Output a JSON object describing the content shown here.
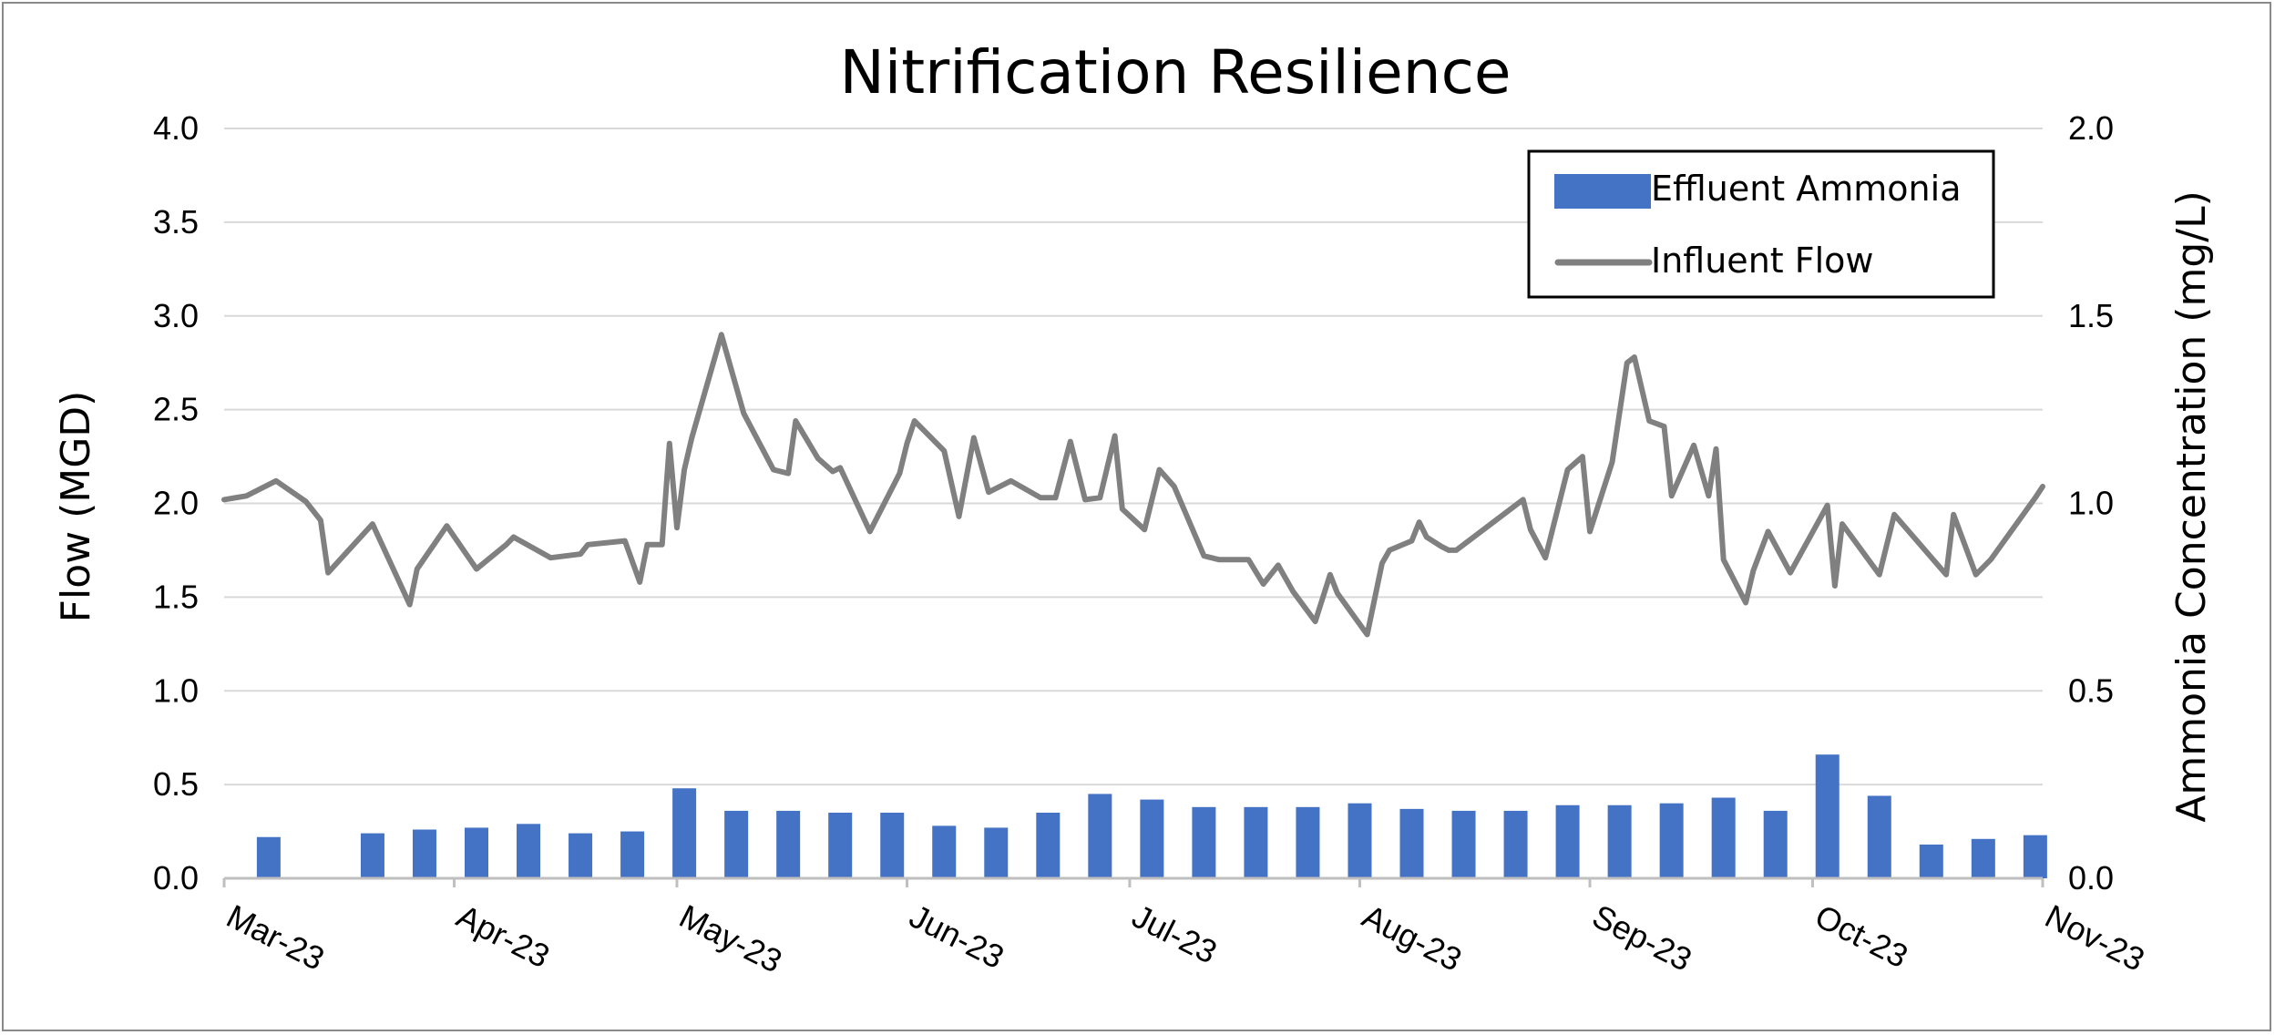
{
  "chart_data": {
    "type": "bar",
    "title": "Nitrification Resilience",
    "ylabel_left": "Flow (MGD)",
    "ylabel_right": "Ammonia Concentration (mg/L)",
    "ylim_left": [
      0,
      4
    ],
    "ylim_right": [
      0,
      2
    ],
    "yticks_left": [
      "0.0",
      "0.5",
      "1.0",
      "1.5",
      "2.0",
      "2.5",
      "3.0",
      "3.5",
      "4.0"
    ],
    "yticks_right": [
      "0.0",
      "0.5",
      "1.0",
      "1.5",
      "2.0"
    ],
    "xlim": [
      "2023-03-01",
      "2023-11-01"
    ],
    "x_tick_labels": [
      "Mar-23",
      "Apr-23",
      "May-23",
      "Jun-23",
      "Jul-23",
      "Aug-23",
      "Sep-23",
      "Oct-23",
      "Nov-23"
    ],
    "x_tick_dates": [
      "2023-03-01",
      "2023-04-01",
      "2023-05-01",
      "2023-06-01",
      "2023-07-01",
      "2023-08-01",
      "2023-09-01",
      "2023-10-01",
      "2023-11-01"
    ],
    "grid": true,
    "legend_position": "top-right",
    "series": [
      {
        "name": "Effluent Ammonia",
        "type": "bar",
        "axis": "right",
        "color": "#4472C4",
        "x": [
          "2023-03-07",
          "2023-03-21",
          "2023-03-28",
          "2023-04-04",
          "2023-04-11",
          "2023-04-18",
          "2023-04-25",
          "2023-05-02",
          "2023-05-09",
          "2023-05-16",
          "2023-05-23",
          "2023-05-30",
          "2023-06-06",
          "2023-06-13",
          "2023-06-20",
          "2023-06-27",
          "2023-07-04",
          "2023-07-11",
          "2023-07-18",
          "2023-07-25",
          "2023-08-01",
          "2023-08-08",
          "2023-08-15",
          "2023-08-22",
          "2023-08-29",
          "2023-09-05",
          "2023-09-12",
          "2023-09-19",
          "2023-09-26",
          "2023-10-03",
          "2023-10-10",
          "2023-10-17",
          "2023-10-24",
          "2023-10-31"
        ],
        "values": [
          0.11,
          0.12,
          0.13,
          0.135,
          0.145,
          0.12,
          0.125,
          0.24,
          0.18,
          0.18,
          0.175,
          0.175,
          0.14,
          0.135,
          0.175,
          0.225,
          0.21,
          0.19,
          0.19,
          0.19,
          0.2,
          0.185,
          0.18,
          0.18,
          0.195,
          0.195,
          0.2,
          0.215,
          0.18,
          0.33,
          0.22,
          0.09,
          0.105,
          0.115
        ]
      },
      {
        "name": "Influent Flow",
        "type": "line",
        "axis": "left",
        "color": "#808080",
        "x": [
          "2023-03-01",
          "2023-03-04",
          "2023-03-08",
          "2023-03-12",
          "2023-03-14",
          "2023-03-15",
          "2023-03-21",
          "2023-03-26",
          "2023-03-27",
          "2023-03-31",
          "2023-04-04",
          "2023-04-08",
          "2023-04-09",
          "2023-04-14",
          "2023-04-18",
          "2023-04-19",
          "2023-04-24",
          "2023-04-26",
          "2023-04-27",
          "2023-04-29",
          "2023-04-30",
          "2023-05-01",
          "2023-05-02",
          "2023-05-03",
          "2023-05-07",
          "2023-05-10",
          "2023-05-14",
          "2023-05-16",
          "2023-05-17",
          "2023-05-20",
          "2023-05-22",
          "2023-05-23",
          "2023-05-27",
          "2023-05-31",
          "2023-06-01",
          "2023-06-02",
          "2023-06-06",
          "2023-06-08",
          "2023-06-10",
          "2023-06-12",
          "2023-06-15",
          "2023-06-19",
          "2023-06-21",
          "2023-06-23",
          "2023-06-25",
          "2023-06-27",
          "2023-06-29",
          "2023-06-30",
          "2023-07-03",
          "2023-07-05",
          "2023-07-07",
          "2023-07-11",
          "2023-07-13",
          "2023-07-17",
          "2023-07-19",
          "2023-07-21",
          "2023-07-23",
          "2023-07-26",
          "2023-07-28",
          "2023-07-29",
          "2023-08-02",
          "2023-08-04",
          "2023-08-05",
          "2023-08-08",
          "2023-08-09",
          "2023-08-10",
          "2023-08-12",
          "2023-08-13",
          "2023-08-14",
          "2023-08-23",
          "2023-08-24",
          "2023-08-26",
          "2023-08-29",
          "2023-08-31",
          "2023-09-01",
          "2023-09-04",
          "2023-09-06",
          "2023-09-07",
          "2023-09-09",
          "2023-09-11",
          "2023-09-12",
          "2023-09-15",
          "2023-09-17",
          "2023-09-18",
          "2023-09-19",
          "2023-09-22",
          "2023-09-23",
          "2023-09-25",
          "2023-09-28",
          "2023-10-03",
          "2023-10-04",
          "2023-10-05",
          "2023-10-10",
          "2023-10-12",
          "2023-10-19",
          "2023-10-20",
          "2023-10-23",
          "2023-10-25",
          "2023-10-31",
          "2023-11-04"
        ],
        "values": [
          2.02,
          2.04,
          2.12,
          2.01,
          1.91,
          1.63,
          1.89,
          1.46,
          1.65,
          1.88,
          1.65,
          1.78,
          1.82,
          1.71,
          1.73,
          1.78,
          1.8,
          1.58,
          1.78,
          1.78,
          2.32,
          1.87,
          2.18,
          2.35,
          2.9,
          2.48,
          2.18,
          2.16,
          2.44,
          2.24,
          2.17,
          2.19,
          1.85,
          2.16,
          2.32,
          2.44,
          2.28,
          1.93,
          2.35,
          2.06,
          2.12,
          2.03,
          2.03,
          2.33,
          2.02,
          2.03,
          2.36,
          1.97,
          1.86,
          2.18,
          2.09,
          1.72,
          1.7,
          1.7,
          1.57,
          1.67,
          1.53,
          1.37,
          1.62,
          1.52,
          1.3,
          1.68,
          1.75,
          1.8,
          1.9,
          1.82,
          1.77,
          1.75,
          1.75,
          2.02,
          1.86,
          1.71,
          2.18,
          2.25,
          1.85,
          2.22,
          2.75,
          2.78,
          2.44,
          2.41,
          2.04,
          2.31,
          2.04,
          2.29,
          1.7,
          1.47,
          1.64,
          1.85,
          1.63,
          1.99,
          1.56,
          1.89,
          1.62,
          1.94,
          1.62,
          1.94,
          1.62,
          1.7,
          2.03,
          2.09
        ]
      }
    ]
  }
}
